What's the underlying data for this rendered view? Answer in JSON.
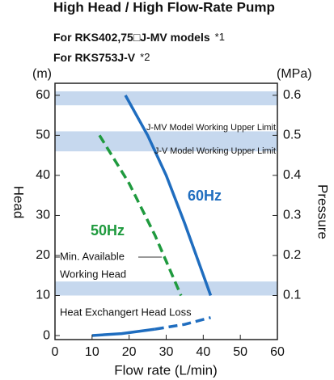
{
  "chart_data": {
    "type": "line",
    "title": "High Head / High Flow-Rate Pump",
    "subtitle": [
      "For RKS402,75□J-MV models",
      "For RKS753J-V"
    ],
    "notes": [
      "*1",
      "*2"
    ],
    "xlabel": "Flow rate (L/min)",
    "ylabel": "Head",
    "yunit": "(m)",
    "y2label": "Pressure",
    "y2unit": "(MPa)",
    "xlim": [
      0,
      60
    ],
    "xticks": [
      0,
      10,
      20,
      30,
      40,
      50,
      60
    ],
    "ylim": [
      -1,
      63
    ],
    "yticks": [
      0,
      10,
      20,
      30,
      40,
      50,
      60
    ],
    "y2lim": [
      -0.01,
      0.63
    ],
    "y2ticks": [
      0.1,
      0.2,
      0.3,
      0.4,
      0.5,
      0.6
    ],
    "bands": [
      [
        57.5,
        61
      ],
      [
        46,
        51
      ],
      [
        10,
        13.5
      ]
    ],
    "band_color": "#c6d8ee",
    "series": [
      {
        "name": "60Hz",
        "color": "#1f6dbf",
        "style": "solid",
        "x": [
          19,
          25,
          30,
          35,
          42
        ],
        "values": [
          60,
          50,
          40,
          28,
          10
        ]
      },
      {
        "name": "50Hz",
        "color": "#1f9a3e",
        "style": "dashed",
        "x": [
          12,
          20,
          27,
          34
        ],
        "values": [
          50,
          38,
          25,
          10
        ]
      },
      {
        "color": "#1f6dbf",
        "style": "solid",
        "x": [
          10,
          18,
          27
        ],
        "values": [
          0,
          0.5,
          1.6
        ]
      },
      {
        "color": "#1f6dbf",
        "style": "dashed",
        "x": [
          27,
          35,
          42
        ],
        "values": [
          1.6,
          2.8,
          4.5
        ]
      }
    ],
    "annotations": [
      "J-MV Model Working Upper Limit",
      "J-V Model Working Upper Limit",
      "Min. Available",
      "Working Head",
      "Heat Exchangert Head Loss"
    ]
  }
}
